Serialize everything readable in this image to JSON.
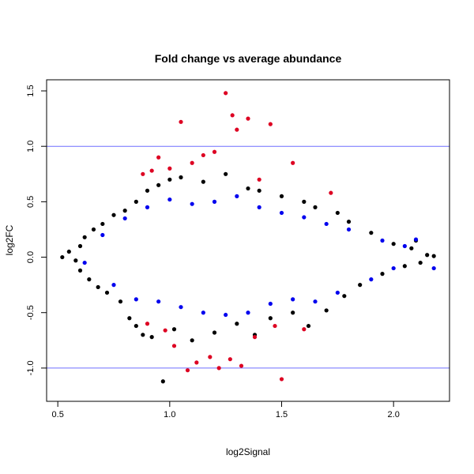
{
  "chart_data": {
    "type": "scatter",
    "title": "Fold change vs average abundance",
    "xlabel": "log2Signal",
    "ylabel": "log2FC",
    "xlim": [
      0.45,
      2.25
    ],
    "ylim": [
      -1.3,
      1.6
    ],
    "x_ticks": [
      0.5,
      1.0,
      1.5,
      2.0
    ],
    "x_tick_labels": [
      "0.5",
      "1.0",
      "1.5",
      "2.0"
    ],
    "y_ticks": [
      -1.0,
      -0.5,
      0.0,
      0.5,
      1.0,
      1.5
    ],
    "y_tick_labels": [
      "-1.0",
      "-0.5",
      "0.0",
      "0.5",
      "1.0",
      "1.5"
    ],
    "reference_lines_y": [
      -1.0,
      1.0
    ],
    "reference_line_color": "#6f6fff",
    "grid": false,
    "legend": "none",
    "series": [
      {
        "color": "#000000",
        "points": [
          [
            0.52,
            0.0
          ],
          [
            0.55,
            0.05
          ],
          [
            0.58,
            -0.03
          ],
          [
            0.6,
            0.1
          ],
          [
            0.6,
            -0.12
          ],
          [
            0.62,
            0.18
          ],
          [
            0.64,
            -0.2
          ],
          [
            0.66,
            0.25
          ],
          [
            0.68,
            -0.27
          ],
          [
            0.7,
            0.3
          ],
          [
            0.72,
            -0.32
          ],
          [
            0.75,
            0.38
          ],
          [
            0.78,
            -0.4
          ],
          [
            0.8,
            0.42
          ],
          [
            0.82,
            -0.55
          ],
          [
            0.85,
            0.5
          ],
          [
            0.85,
            -0.62
          ],
          [
            0.88,
            -0.7
          ],
          [
            0.9,
            0.6
          ],
          [
            0.92,
            -0.72
          ],
          [
            0.95,
            0.65
          ],
          [
            0.97,
            -1.12
          ],
          [
            1.0,
            0.7
          ],
          [
            1.02,
            -0.65
          ],
          [
            1.05,
            0.72
          ],
          [
            1.1,
            -0.75
          ],
          [
            1.15,
            0.68
          ],
          [
            1.2,
            -0.68
          ],
          [
            1.25,
            0.75
          ],
          [
            1.3,
            -0.6
          ],
          [
            1.35,
            0.62
          ],
          [
            1.38,
            -0.7
          ],
          [
            1.4,
            0.6
          ],
          [
            1.45,
            -0.55
          ],
          [
            1.5,
            0.55
          ],
          [
            1.55,
            -0.5
          ],
          [
            1.6,
            0.5
          ],
          [
            1.62,
            -0.62
          ],
          [
            1.65,
            0.45
          ],
          [
            1.7,
            -0.48
          ],
          [
            1.75,
            0.4
          ],
          [
            1.78,
            -0.35
          ],
          [
            1.8,
            0.32
          ],
          [
            1.85,
            -0.25
          ],
          [
            1.9,
            0.22
          ],
          [
            1.95,
            -0.15
          ],
          [
            2.0,
            0.12
          ],
          [
            2.05,
            -0.08
          ],
          [
            2.08,
            0.08
          ],
          [
            2.1,
            0.15
          ],
          [
            2.12,
            -0.05
          ],
          [
            2.15,
            0.02
          ],
          [
            2.18,
            0.01
          ]
        ]
      },
      {
        "color": "#0000ee",
        "points": [
          [
            0.62,
            -0.05
          ],
          [
            0.7,
            0.2
          ],
          [
            0.75,
            -0.25
          ],
          [
            0.8,
            0.35
          ],
          [
            0.85,
            -0.38
          ],
          [
            0.9,
            0.45
          ],
          [
            0.95,
            -0.4
          ],
          [
            1.0,
            0.52
          ],
          [
            1.05,
            -0.45
          ],
          [
            1.1,
            0.48
          ],
          [
            1.15,
            -0.5
          ],
          [
            1.2,
            0.5
          ],
          [
            1.25,
            -0.52
          ],
          [
            1.3,
            0.55
          ],
          [
            1.35,
            -0.5
          ],
          [
            1.4,
            0.45
          ],
          [
            1.45,
            -0.42
          ],
          [
            1.5,
            0.4
          ],
          [
            1.55,
            -0.38
          ],
          [
            1.6,
            0.36
          ],
          [
            1.65,
            -0.4
          ],
          [
            1.7,
            0.3
          ],
          [
            1.75,
            -0.32
          ],
          [
            1.8,
            0.25
          ],
          [
            1.9,
            -0.2
          ],
          [
            1.95,
            0.15
          ],
          [
            2.0,
            -0.1
          ],
          [
            2.05,
            0.1
          ],
          [
            2.1,
            0.16
          ],
          [
            2.18,
            -0.1
          ]
        ]
      },
      {
        "color": "#dd0022",
        "points": [
          [
            0.88,
            0.75
          ],
          [
            0.9,
            -0.6
          ],
          [
            0.92,
            0.78
          ],
          [
            0.95,
            0.9
          ],
          [
            0.98,
            -0.66
          ],
          [
            1.0,
            0.8
          ],
          [
            1.02,
            -0.8
          ],
          [
            1.05,
            1.22
          ],
          [
            1.08,
            -1.02
          ],
          [
            1.1,
            0.85
          ],
          [
            1.12,
            -0.95
          ],
          [
            1.15,
            0.92
          ],
          [
            1.18,
            -0.9
          ],
          [
            1.2,
            0.95
          ],
          [
            1.22,
            -1.0
          ],
          [
            1.25,
            1.48
          ],
          [
            1.27,
            -0.92
          ],
          [
            1.28,
            1.28
          ],
          [
            1.3,
            1.15
          ],
          [
            1.32,
            -0.98
          ],
          [
            1.35,
            1.25
          ],
          [
            1.38,
            -0.72
          ],
          [
            1.4,
            0.7
          ],
          [
            1.45,
            1.2
          ],
          [
            1.47,
            -0.62
          ],
          [
            1.5,
            -1.1
          ],
          [
            1.55,
            0.85
          ],
          [
            1.6,
            -0.65
          ],
          [
            1.72,
            0.58
          ]
        ]
      }
    ]
  }
}
